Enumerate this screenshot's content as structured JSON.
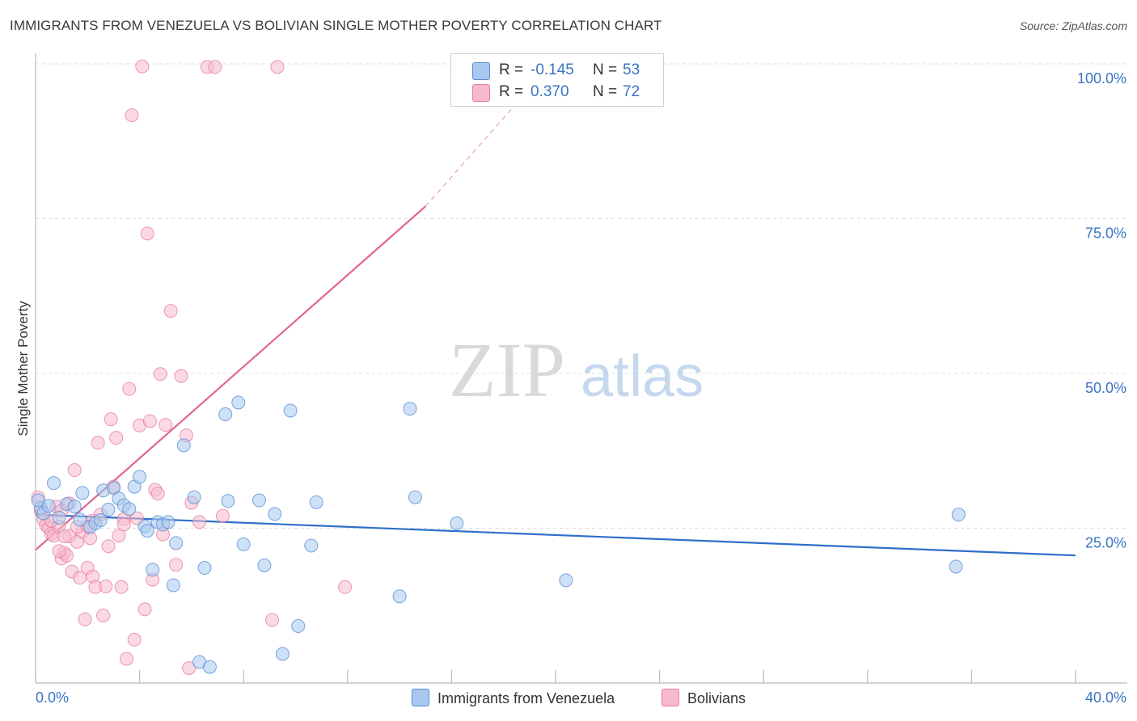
{
  "title": "IMMIGRANTS FROM VENEZUELA VS BOLIVIAN SINGLE MOTHER POVERTY CORRELATION CHART",
  "source": "Source: ZipAtlas.com",
  "watermark": {
    "zip": "ZIP",
    "atlas": "atlas"
  },
  "legend": {
    "rows": [
      {
        "r_label": "R =",
        "r_value": "-0.145",
        "n_label": "N =",
        "n_value": "53",
        "color": "#a8c8ef"
      },
      {
        "r_label": "R =",
        "r_value": "0.370",
        "n_label": "N =",
        "n_value": "72",
        "color": "#f7b9cc"
      }
    ]
  },
  "bottom_legend": [
    {
      "label": "Immigrants from Venezuela",
      "color": "#a8c8ef"
    },
    {
      "label": "Bolivians",
      "color": "#f7b9cc"
    }
  ],
  "colors": {
    "blue_fill": "#a8c8ef",
    "blue_stroke": "#5b8fd6",
    "blue_line": "#2f6fc9",
    "pink_fill": "#f7b9cc",
    "pink_stroke": "#e77fa0",
    "pink_line": "#e0668f",
    "grid": "#dddddd",
    "axis_label": "#3a75c4"
  },
  "chart_data": {
    "type": "scatter",
    "title": "IMMIGRANTS FROM VENEZUELA VS BOLIVIAN SINGLE MOTHER POVERTY CORRELATION CHART",
    "xlabel": "",
    "ylabel": "Single Mother Poverty",
    "xlim": [
      0,
      40
    ],
    "ylim": [
      0,
      100
    ],
    "x_tick_labels": [
      "0.0%",
      "40.0%"
    ],
    "y_tick_labels": [
      "25.0%",
      "50.0%",
      "75.0%",
      "100.0%"
    ],
    "y_ticks": [
      25,
      50,
      75,
      100
    ],
    "series": [
      {
        "name": "Immigrants from Venezuela",
        "r": -0.145,
        "n": 53,
        "trend": {
          "x0": 0,
          "y0": 27.2,
          "x1": 40,
          "y1": 20.6
        },
        "points": [
          [
            0.2,
            28.3
          ],
          [
            0.3,
            27.4
          ],
          [
            0.5,
            28.6
          ],
          [
            0.7,
            32.3
          ],
          [
            0.9,
            26.7
          ],
          [
            1.2,
            28.9
          ],
          [
            1.5,
            28.5
          ],
          [
            1.7,
            26.4
          ],
          [
            1.8,
            30.7
          ],
          [
            2.1,
            25.2
          ],
          [
            2.3,
            25.8
          ],
          [
            2.5,
            26.3
          ],
          [
            2.6,
            31.1
          ],
          [
            2.8,
            28.0
          ],
          [
            3.0,
            31.5
          ],
          [
            3.2,
            29.8
          ],
          [
            3.4,
            28.7
          ],
          [
            3.6,
            28.1
          ],
          [
            3.8,
            31.7
          ],
          [
            4.0,
            33.3
          ],
          [
            4.2,
            25.3
          ],
          [
            4.3,
            24.6
          ],
          [
            4.5,
            18.3
          ],
          [
            4.7,
            26.0
          ],
          [
            4.9,
            25.6
          ],
          [
            5.1,
            26.0
          ],
          [
            5.3,
            15.8
          ],
          [
            5.4,
            22.6
          ],
          [
            5.7,
            38.4
          ],
          [
            6.1,
            30.0
          ],
          [
            6.3,
            3.4
          ],
          [
            6.5,
            18.6
          ],
          [
            6.7,
            2.6
          ],
          [
            7.3,
            43.4
          ],
          [
            7.4,
            29.4
          ],
          [
            7.8,
            45.3
          ],
          [
            8.0,
            22.4
          ],
          [
            8.6,
            29.5
          ],
          [
            8.8,
            19.0
          ],
          [
            9.2,
            27.3
          ],
          [
            9.5,
            4.7
          ],
          [
            9.8,
            44.0
          ],
          [
            10.1,
            9.2
          ],
          [
            10.6,
            22.2
          ],
          [
            10.8,
            29.2
          ],
          [
            14.0,
            14.0
          ],
          [
            14.4,
            44.3
          ],
          [
            14.6,
            30.0
          ],
          [
            16.2,
            25.8
          ],
          [
            20.4,
            16.6
          ],
          [
            35.4,
            18.8
          ],
          [
            35.5,
            27.2
          ],
          [
            0.1,
            29.5
          ]
        ]
      },
      {
        "name": "Bolivians",
        "r": 0.37,
        "n": 72,
        "trend": {
          "x0": 0,
          "y0": 21.5,
          "x1": 15.0,
          "y1": 77.0,
          "dash_x1": 19.0,
          "dash_y1": 96.0
        },
        "points": [
          [
            0.1,
            30.0
          ],
          [
            0.2,
            27.8
          ],
          [
            0.3,
            26.4
          ],
          [
            0.4,
            25.5
          ],
          [
            0.5,
            25.0
          ],
          [
            0.6,
            24.1
          ],
          [
            0.7,
            23.8
          ],
          [
            0.8,
            28.5
          ],
          [
            0.9,
            25.3
          ],
          [
            1.0,
            20.1
          ],
          [
            1.1,
            21.0
          ],
          [
            1.2,
            20.6
          ],
          [
            1.3,
            23.7
          ],
          [
            1.4,
            18.0
          ],
          [
            1.5,
            34.4
          ],
          [
            1.6,
            22.8
          ],
          [
            1.7,
            17.0
          ],
          [
            1.8,
            24.4
          ],
          [
            1.9,
            10.3
          ],
          [
            2.0,
            18.6
          ],
          [
            2.1,
            23.4
          ],
          [
            2.2,
            17.2
          ],
          [
            2.3,
            15.5
          ],
          [
            2.4,
            38.8
          ],
          [
            2.5,
            27.2
          ],
          [
            2.6,
            10.9
          ],
          [
            2.7,
            15.6
          ],
          [
            2.8,
            22.1
          ],
          [
            2.9,
            42.6
          ],
          [
            3.0,
            31.7
          ],
          [
            3.1,
            39.6
          ],
          [
            3.2,
            23.8
          ],
          [
            3.3,
            15.5
          ],
          [
            3.4,
            26.5
          ],
          [
            3.5,
            3.9
          ],
          [
            3.6,
            47.5
          ],
          [
            3.7,
            91.7
          ],
          [
            3.8,
            7.0
          ],
          [
            3.9,
            26.6
          ],
          [
            4.0,
            41.6
          ],
          [
            4.1,
            99.6
          ],
          [
            4.2,
            11.9
          ],
          [
            4.3,
            72.6
          ],
          [
            4.4,
            42.3
          ],
          [
            4.5,
            16.7
          ],
          [
            4.6,
            31.2
          ],
          [
            4.7,
            30.6
          ],
          [
            4.8,
            49.9
          ],
          [
            4.9,
            24.0
          ],
          [
            5.0,
            41.7
          ],
          [
            5.2,
            60.1
          ],
          [
            5.4,
            19.1
          ],
          [
            5.6,
            49.6
          ],
          [
            5.8,
            40.0
          ],
          [
            5.9,
            2.4
          ],
          [
            6.0,
            29.1
          ],
          [
            6.3,
            26.0
          ],
          [
            6.6,
            99.5
          ],
          [
            6.9,
            99.5
          ],
          [
            7.2,
            27.0
          ],
          [
            9.1,
            10.2
          ],
          [
            9.3,
            99.5
          ],
          [
            11.9,
            15.5
          ],
          [
            1.0,
            27.8
          ],
          [
            1.6,
            25.2
          ],
          [
            2.2,
            26.2
          ],
          [
            0.6,
            26.2
          ],
          [
            1.3,
            29.0
          ],
          [
            3.4,
            25.6
          ],
          [
            0.9,
            21.3
          ],
          [
            2.0,
            25.3
          ],
          [
            1.1,
            23.7
          ]
        ]
      }
    ]
  }
}
